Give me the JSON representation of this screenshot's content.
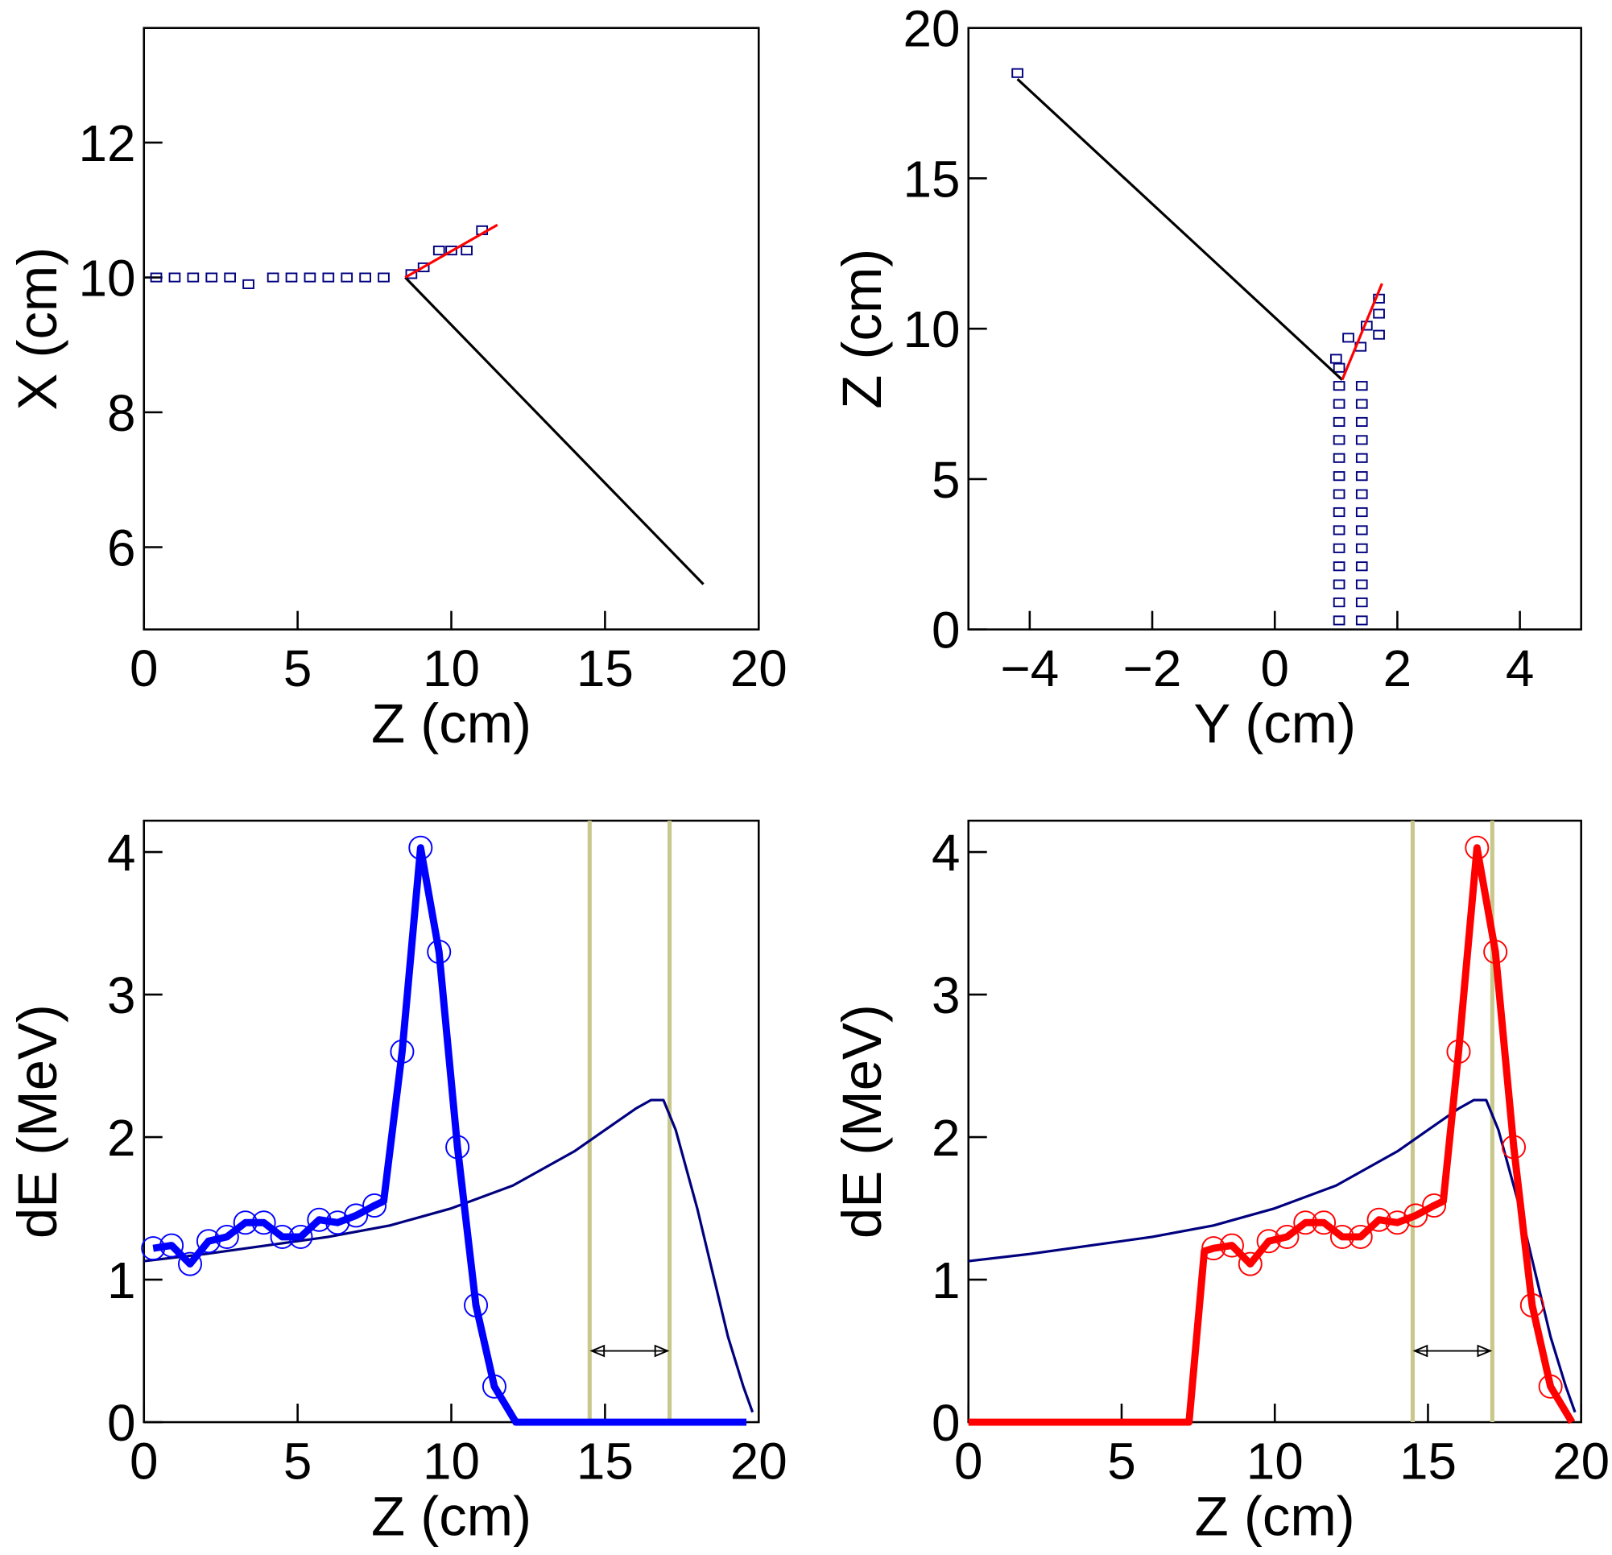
{
  "chart_data": [
    {
      "type": "scatter",
      "xlabel": "Z (cm)",
      "ylabel": "X (cm)",
      "xlim": [
        0,
        20
      ],
      "ylim": [
        4.78,
        13.7
      ],
      "xticks": [
        0,
        5,
        10,
        15,
        20
      ],
      "yticks": [
        6,
        8,
        10,
        12
      ],
      "series": [
        {
          "marker": "box",
          "color": "#00007f",
          "x": [
            0.4,
            1.0,
            1.6,
            2.2,
            2.8,
            3.4,
            4.2,
            4.8,
            5.4,
            6.0,
            6.6,
            7.2,
            7.8,
            8.7,
            9.1,
            9.6,
            10.0,
            10.5,
            11.0
          ],
          "y": [
            10.0,
            10.0,
            10.0,
            10.0,
            10.0,
            9.9,
            10.0,
            10.0,
            10.0,
            10.0,
            10.0,
            10.0,
            10.0,
            10.05,
            10.15,
            10.4,
            10.4,
            10.4,
            10.7
          ]
        },
        {
          "marker": "line",
          "color": "#000000",
          "weight": "thin",
          "x": [
            8.5,
            18.2
          ],
          "y": [
            10.0,
            5.45
          ]
        },
        {
          "marker": "line",
          "color": "#ff0000",
          "weight": "thin",
          "x": [
            8.5,
            11.5
          ],
          "y": [
            10.0,
            10.78
          ]
        }
      ]
    },
    {
      "type": "scatter",
      "xlabel": "Y (cm)",
      "ylabel": "Z (cm)",
      "xlim": [
        -5,
        5
      ],
      "ylim": [
        0,
        20
      ],
      "xticks": [
        {
          "value": -4,
          "label": "−4"
        },
        {
          "value": -2,
          "label": "−2"
        },
        0,
        2,
        4
      ],
      "yticks": [
        0,
        5,
        10,
        15,
        20
      ],
      "series": [
        {
          "marker": "box",
          "color": "#00007f",
          "x": [
            1.05,
            1.05,
            1.05,
            1.05,
            1.05,
            1.05,
            1.05,
            1.05,
            1.05,
            1.05,
            1.05,
            1.05,
            1.05,
            1.05,
            1.05,
            1.42,
            1.42,
            1.42,
            1.42,
            1.42,
            1.42,
            1.42,
            1.42,
            1.42,
            1.42,
            1.42,
            1.42,
            1.42,
            1.42,
            1.0,
            1.4,
            1.5,
            1.7,
            1.7,
            1.2,
            1.7,
            -4.2
          ],
          "y": [
            0.3,
            0.9,
            1.5,
            2.1,
            2.7,
            3.3,
            3.9,
            4.5,
            5.1,
            5.7,
            6.3,
            6.9,
            7.5,
            8.1,
            8.7,
            0.3,
            0.9,
            1.5,
            2.1,
            2.7,
            3.3,
            3.9,
            4.5,
            5.1,
            5.7,
            6.3,
            6.9,
            7.5,
            8.1,
            9.0,
            9.4,
            10.1,
            10.5,
            9.8,
            9.7,
            11.0,
            18.5
          ]
        },
        {
          "marker": "line",
          "color": "#000000",
          "weight": "thin",
          "x": [
            -4.2,
            1.1
          ],
          "y": [
            18.3,
            8.3
          ]
        },
        {
          "marker": "line",
          "color": "#ff0000",
          "weight": "thin",
          "x": [
            1.1,
            1.75
          ],
          "y": [
            8.3,
            11.5
          ]
        }
      ]
    },
    {
      "type": "line",
      "xlabel": "Z (cm)",
      "ylabel": "dE (MeV)",
      "xlim": [
        0,
        20
      ],
      "ylim": [
        0,
        4.22
      ],
      "xticks": [
        0,
        5,
        10,
        15,
        20
      ],
      "yticks": [
        0,
        1,
        2,
        3,
        4
      ],
      "vlines": [
        14.5,
        17.1
      ],
      "vline_color": "#c8c88c",
      "arrow_y": 0.5,
      "series": [
        {
          "marker": "line",
          "color": "#00007f",
          "weight": "thin",
          "x": [
            0,
            2,
            4,
            6,
            8,
            10,
            12,
            14,
            15,
            16,
            16.5,
            16.9,
            17.3,
            18,
            18.5,
            19,
            19.5,
            19.8
          ],
          "y": [
            1.13,
            1.18,
            1.24,
            1.3,
            1.38,
            1.5,
            1.66,
            1.9,
            2.05,
            2.2,
            2.26,
            2.26,
            2.05,
            1.5,
            1.05,
            0.6,
            0.25,
            0.07
          ]
        },
        {
          "marker": "line",
          "color": "#0000ff",
          "weight": "thick",
          "x": [
            0.3,
            0.9,
            1.5,
            2.1,
            2.7,
            3.3,
            3.9,
            4.5,
            5.1,
            5.7,
            6.3,
            6.9,
            7.5,
            7.8,
            8.4,
            9.0,
            9.6,
            10.2,
            10.8,
            11.4,
            12.1,
            19.6
          ],
          "y": [
            1.22,
            1.24,
            1.11,
            1.27,
            1.3,
            1.4,
            1.4,
            1.3,
            1.3,
            1.42,
            1.4,
            1.45,
            1.52,
            1.55,
            2.6,
            4.03,
            3.3,
            1.93,
            0.82,
            0.25,
            0,
            0
          ]
        },
        {
          "marker": "circle",
          "color": "#0000ff",
          "x": [
            0.3,
            0.9,
            1.5,
            2.1,
            2.7,
            3.3,
            3.9,
            4.5,
            5.1,
            5.7,
            6.3,
            6.9,
            7.5,
            8.4,
            9.0,
            9.6,
            10.2,
            10.8,
            11.4
          ],
          "y": [
            1.22,
            1.24,
            1.11,
            1.27,
            1.3,
            1.4,
            1.4,
            1.3,
            1.3,
            1.42,
            1.4,
            1.45,
            1.52,
            2.6,
            4.03,
            3.3,
            1.93,
            0.82,
            0.25
          ]
        }
      ]
    },
    {
      "type": "line",
      "xlabel": "Z (cm)",
      "ylabel": "dE (MeV)",
      "xlim": [
        0,
        20
      ],
      "ylim": [
        0,
        4.22
      ],
      "xticks": [
        0,
        5,
        10,
        15,
        20
      ],
      "yticks": [
        0,
        1,
        2,
        3,
        4
      ],
      "vlines": [
        14.5,
        17.1
      ],
      "vline_color": "#c8c88c",
      "arrow_y": 0.5,
      "series": [
        {
          "marker": "line",
          "color": "#00007f",
          "weight": "thin",
          "x": [
            0,
            2,
            4,
            6,
            8,
            10,
            12,
            14,
            15,
            16,
            16.5,
            16.9,
            17.3,
            18,
            18.5,
            19,
            19.5,
            19.8
          ],
          "y": [
            1.13,
            1.18,
            1.24,
            1.3,
            1.38,
            1.5,
            1.66,
            1.9,
            2.05,
            2.2,
            2.26,
            2.26,
            2.05,
            1.5,
            1.05,
            0.6,
            0.25,
            0.07
          ]
        },
        {
          "marker": "line",
          "color": "#ff0000",
          "weight": "thick",
          "x": [
            0,
            7.2,
            7.7,
            8.0,
            8.6,
            9.2,
            9.8,
            10.4,
            11.0,
            11.6,
            12.2,
            12.8,
            13.4,
            14.0,
            14.6,
            15.2,
            15.5,
            16.0,
            16.6,
            17.2,
            17.8,
            18.4,
            19.0,
            19.7
          ],
          "y": [
            0,
            0,
            1.2,
            1.22,
            1.24,
            1.11,
            1.27,
            1.3,
            1.4,
            1.4,
            1.3,
            1.3,
            1.42,
            1.4,
            1.45,
            1.52,
            1.55,
            2.6,
            4.03,
            3.3,
            1.93,
            0.82,
            0.25,
            0
          ]
        },
        {
          "marker": "circle",
          "color": "#ff0000",
          "x": [
            8.0,
            8.6,
            9.2,
            9.8,
            10.4,
            11.0,
            11.6,
            12.2,
            12.8,
            13.4,
            14.0,
            14.6,
            15.2,
            16.0,
            16.6,
            17.2,
            17.8,
            18.4,
            19.0
          ],
          "y": [
            1.22,
            1.24,
            1.11,
            1.27,
            1.3,
            1.4,
            1.4,
            1.3,
            1.3,
            1.42,
            1.4,
            1.45,
            1.52,
            2.6,
            4.03,
            3.3,
            1.93,
            0.82,
            0.25
          ]
        }
      ]
    }
  ]
}
